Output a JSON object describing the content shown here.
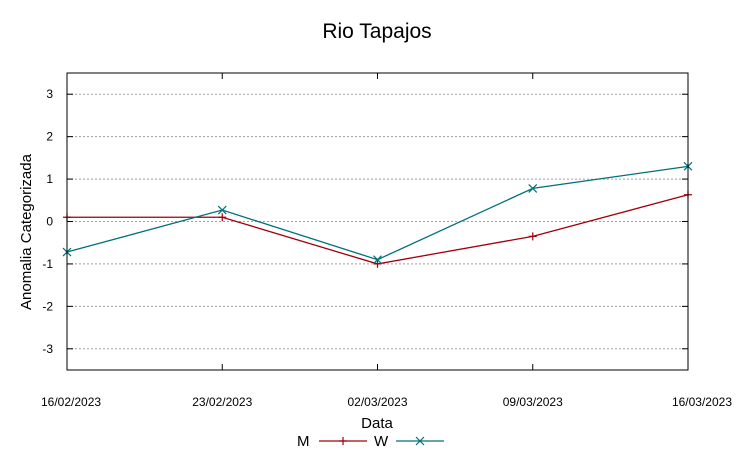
{
  "chart_data": {
    "type": "line",
    "title": "Rio Tapajos",
    "xlabel": "Data",
    "ylabel": "Anomalia Categorizada",
    "categories": [
      "16/02/2023",
      "23/02/2023",
      "02/03/2023",
      "09/03/2023",
      "16/03/2023"
    ],
    "ylim": [
      -3.5,
      3.5
    ],
    "yticks": [
      -3,
      -2,
      -1,
      0,
      1,
      2,
      3
    ],
    "grid": true,
    "legend_position": "bottom-center",
    "series": [
      {
        "name": "M",
        "color": "#a0000a",
        "marker": "plus",
        "values": [
          0.1,
          0.1,
          -1.0,
          -0.35,
          0.63
        ]
      },
      {
        "name": "W",
        "color": "#00707a",
        "marker": "cross",
        "values": [
          -0.72,
          0.27,
          -0.9,
          0.78,
          1.3
        ]
      }
    ]
  }
}
